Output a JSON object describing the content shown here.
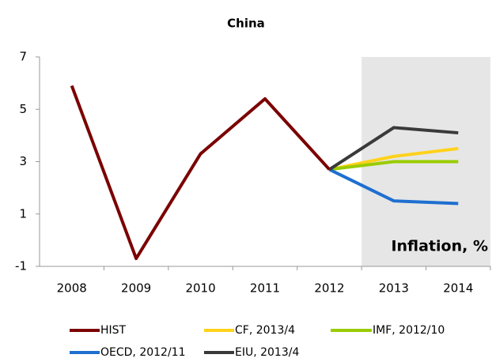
{
  "chart_data": {
    "type": "line",
    "title": "China",
    "annotation": "Inflation, %",
    "categories": [
      "2008",
      "2009",
      "2010",
      "2011",
      "2012",
      "2013",
      "2014"
    ],
    "series": [
      {
        "name": "HIST",
        "color": "#7b0000",
        "values": [
          5.9,
          -0.7,
          3.3,
          5.4,
          2.7,
          null,
          null
        ]
      },
      {
        "name": "CF, 2013/4",
        "color": "#ffd21a",
        "values": [
          null,
          null,
          null,
          null,
          2.7,
          3.2,
          3.5
        ]
      },
      {
        "name": "IMF, 2012/10",
        "color": "#99cc00",
        "values": [
          null,
          null,
          null,
          null,
          2.7,
          3.0,
          3.0
        ]
      },
      {
        "name": "OECD, 2012/11",
        "color": "#1e6fd0",
        "values": [
          null,
          null,
          null,
          null,
          2.7,
          1.5,
          1.4
        ]
      },
      {
        "name": "EIU, 2013/4",
        "color": "#3a3a3a",
        "values": [
          null,
          null,
          null,
          null,
          2.7,
          4.3,
          4.1
        ]
      }
    ],
    "ylim": [
      -1,
      7
    ],
    "yticks": [
      -1,
      1,
      3,
      5,
      7
    ],
    "grid": false,
    "legend": "bottom"
  }
}
